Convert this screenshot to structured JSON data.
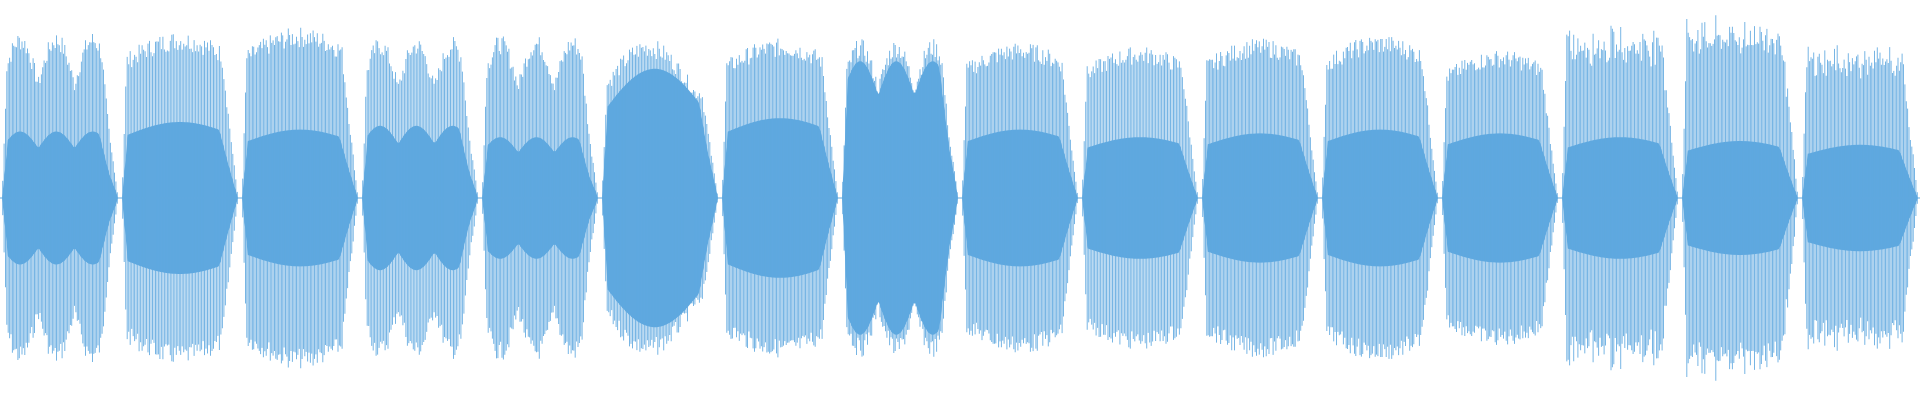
{
  "waveform": {
    "colors": {
      "background": "#ffffff",
      "stroke": "#5fa8df",
      "fill": "#5fa8df"
    },
    "segments": [
      {
        "count": 28,
        "outer_peak": 0.88,
        "inner_peak": 0.35,
        "shape": "double"
      },
      {
        "count": 26,
        "outer_peak": 0.88,
        "inner_peak": 0.4,
        "shape": "single"
      },
      {
        "count": 28,
        "outer_peak": 0.9,
        "inner_peak": 0.36,
        "shape": "single"
      },
      {
        "count": 26,
        "outer_peak": 0.85,
        "inner_peak": 0.38,
        "shape": "double"
      },
      {
        "count": 28,
        "outer_peak": 0.86,
        "inner_peak": 0.32,
        "shape": "double"
      },
      {
        "count": 26,
        "outer_peak": 0.84,
        "inner_peak": 0.68,
        "shape": "smooth"
      },
      {
        "count": 28,
        "outer_peak": 0.84,
        "inner_peak": 0.42,
        "shape": "single"
      },
      {
        "count": 28,
        "outer_peak": 0.84,
        "inner_peak": 0.72,
        "shape": "double"
      },
      {
        "count": 28,
        "outer_peak": 0.82,
        "inner_peak": 0.36,
        "shape": "single"
      },
      {
        "count": 26,
        "outer_peak": 0.8,
        "inner_peak": 0.32,
        "shape": "single"
      },
      {
        "count": 28,
        "outer_peak": 0.84,
        "inner_peak": 0.34,
        "shape": "single"
      },
      {
        "count": 28,
        "outer_peak": 0.86,
        "inner_peak": 0.36,
        "shape": "single"
      },
      {
        "count": 28,
        "outer_peak": 0.78,
        "inner_peak": 0.34,
        "shape": "single"
      },
      {
        "count": 28,
        "outer_peak": 0.92,
        "inner_peak": 0.32,
        "shape": "flat"
      },
      {
        "count": 28,
        "outer_peak": 0.97,
        "inner_peak": 0.3,
        "shape": "flat"
      },
      {
        "count": 28,
        "outer_peak": 0.82,
        "inner_peak": 0.28,
        "shape": "flat"
      }
    ]
  }
}
